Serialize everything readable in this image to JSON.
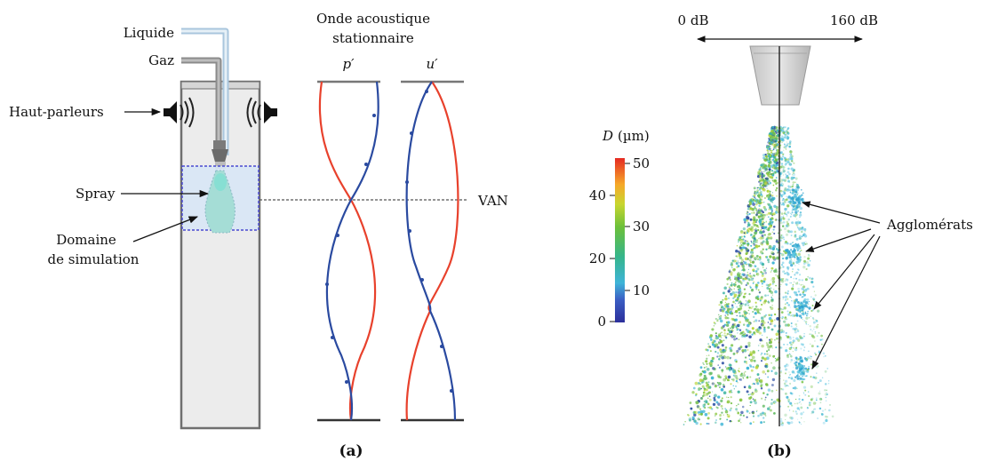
{
  "panel_a": {
    "inputs": {
      "liquid": "Liquide",
      "gas": "Gaz"
    },
    "labels": {
      "speakers": "Haut-parleurs",
      "spray": "Spray",
      "domain_line1": "Domaine",
      "domain_line2": "de simulation",
      "van": "VAN"
    },
    "wave": {
      "title_line1": "Onde acoustique",
      "title_line2": "stationnaire",
      "pressure": "p′",
      "velocity": "u′"
    },
    "caption": "(a)"
  },
  "panel_b": {
    "sound_left": "0 dB",
    "sound_right": "160 dB",
    "colorbar": {
      "label_var": "D",
      "label_unit": "(µm)",
      "ticks_left": [
        "40",
        "20",
        "0"
      ],
      "ticks_right": [
        "50",
        "30",
        "10"
      ]
    },
    "annotation": "Agglomérats",
    "caption": "(b)"
  },
  "colors": {
    "red_curve": "#e8412c",
    "blue_curve": "#2a4aa0",
    "column_fill": "#ececec",
    "domain_fill": "#d7e6f7",
    "domain_border": "#4a4ad0",
    "spray_green": "#74c043",
    "spray_cyan": "#39b3d4"
  }
}
